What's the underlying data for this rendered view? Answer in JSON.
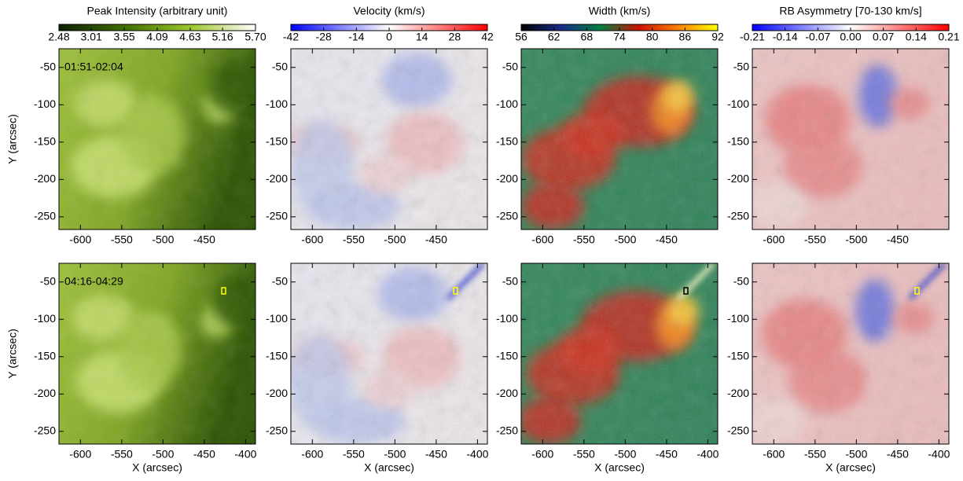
{
  "chart_data": [
    {
      "type": "image",
      "title": "Peak Intensity (arbitrary unit)",
      "ylabel": "Y (arcsec)",
      "clim": [
        2.48,
        5.7
      ],
      "colormap": [
        "#0d1f00",
        "#3f6e00",
        "#9cc62a",
        "#ffffff"
      ],
      "cticks": [
        2.48,
        3.01,
        3.55,
        4.09,
        4.63,
        5.16,
        {
          "value": 5.7,
          "label": "5.70"
        }
      ],
      "xlim": [
        -626,
        -388
      ],
      "ylim": [
        -267,
        -25
      ],
      "yticks": [
        -50,
        -100,
        -150,
        -200,
        -250
      ],
      "panels": [
        {
          "annotation": "01:51-02:04",
          "xticks": [
            -600,
            -550,
            -500,
            -450
          ]
        },
        {
          "annotation": "04:16-04:29",
          "xticks": [
            -600,
            -550,
            -500,
            -450,
            -400
          ],
          "xlabel": "X (arcsec)"
        }
      ]
    },
    {
      "type": "image",
      "title": "Velocity (km/s)",
      "clim": [
        -42,
        42
      ],
      "colormap": [
        "#0000ff",
        "#ffffff",
        "#ff0000"
      ],
      "cticks": [
        -42,
        -28,
        -14,
        0,
        14,
        28,
        42
      ],
      "xlim": [
        -626,
        -388
      ],
      "ylim": [
        -267,
        -25
      ],
      "yticks": [
        -50,
        -100,
        -150,
        -200,
        -250
      ],
      "panels": [
        {
          "xticks": [
            -600,
            -550,
            -500,
            -450
          ]
        },
        {
          "xticks": [
            -600,
            -550,
            -500,
            -450,
            -400
          ],
          "xlabel": "X (arcsec)"
        }
      ]
    },
    {
      "type": "image",
      "title": "Width (km/s)",
      "clim": [
        56,
        92
      ],
      "colormap": [
        "#000000",
        "#1a2a8a",
        "#008040",
        "#cc1000",
        "#ff8000",
        "#ffff00"
      ],
      "cticks": [
        56,
        62,
        68,
        74,
        80,
        86,
        92
      ],
      "xlim": [
        -626,
        -388
      ],
      "ylim": [
        -267,
        -25
      ],
      "yticks": [
        -50,
        -100,
        -150,
        -200,
        -250
      ],
      "panels": [
        {
          "xticks": [
            -600,
            -550,
            -500,
            -450
          ]
        },
        {
          "xticks": [
            -600,
            -550,
            -500,
            -450,
            -400
          ],
          "xlabel": "X (arcsec)"
        }
      ]
    },
    {
      "type": "image",
      "title": "RB Asymmetry [70-130 km/s]",
      "clim": [
        -0.21,
        0.21
      ],
      "colormap": [
        "#0000ff",
        "#ffffff",
        "#ff0000"
      ],
      "cticks": [
        -0.21,
        -0.14,
        -0.07,
        {
          "value": 0,
          "label": "0.00"
        },
        0.07,
        0.14,
        0.21
      ],
      "xlim": [
        -626,
        -388
      ],
      "ylim": [
        -267,
        -25
      ],
      "yticks": [
        -50,
        -100,
        -150,
        -200,
        -250
      ],
      "panels": [
        {
          "xticks": [
            -600,
            -550,
            -500,
            -450
          ]
        },
        {
          "xticks": [
            -600,
            -550,
            -500,
            -450,
            -400
          ],
          "xlabel": "X (arcsec)"
        }
      ]
    }
  ]
}
